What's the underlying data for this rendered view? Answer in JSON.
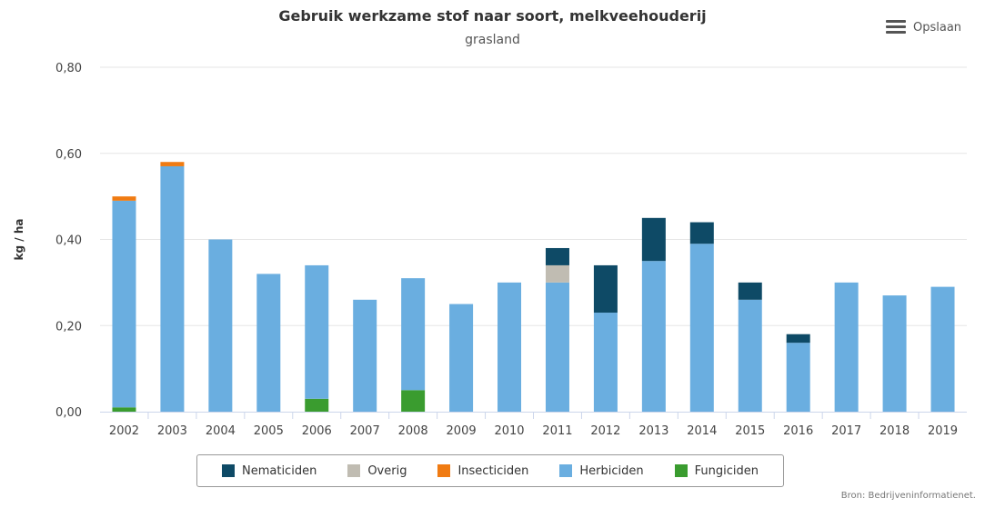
{
  "header": {
    "title": "Gebruik werkzame stof naar soort, melkveehouderij",
    "subtitle": "grasland"
  },
  "menu": {
    "label": "Opslaan",
    "icon": "hamburger-menu-icon"
  },
  "credits": "Bron: Bedrijveninformatienet.",
  "chart_data": {
    "type": "bar",
    "stacked": true,
    "title": "Gebruik werkzame stof naar soort, melkveehouderij",
    "subtitle": "grasland",
    "xlabel": "",
    "ylabel": "kg / ha",
    "ylim": [
      0,
      0.8
    ],
    "yticks": [
      "0,00",
      "0,20",
      "0,40",
      "0,60",
      "0,80"
    ],
    "grid": true,
    "legend_position": "bottom",
    "categories": [
      "2002",
      "2003",
      "2004",
      "2005",
      "2006",
      "2007",
      "2008",
      "2009",
      "2010",
      "2011",
      "2012",
      "2013",
      "2014",
      "2015",
      "2016",
      "2017",
      "2018",
      "2019"
    ],
    "series": [
      {
        "name": "Fungiciden",
        "color": "#3a9c2f",
        "values": [
          0.01,
          0,
          0,
          0,
          0.03,
          0,
          0.05,
          0,
          0,
          0,
          0,
          0,
          0,
          0,
          0,
          0,
          0,
          0
        ]
      },
      {
        "name": "Herbiciden",
        "color": "#6aaee0",
        "values": [
          0.48,
          0.57,
          0.4,
          0.32,
          0.31,
          0.26,
          0.26,
          0.25,
          0.3,
          0.3,
          0.23,
          0.35,
          0.39,
          0.26,
          0.16,
          0.3,
          0.27,
          0.29
        ]
      },
      {
        "name": "Insecticiden",
        "color": "#f07b12",
        "values": [
          0.01,
          0.01,
          0,
          0,
          0,
          0,
          0,
          0,
          0,
          0,
          0,
          0,
          0,
          0,
          0,
          0,
          0,
          0
        ]
      },
      {
        "name": "Overig",
        "color": "#c0bcb2",
        "values": [
          0,
          0,
          0,
          0,
          0,
          0,
          0,
          0,
          0,
          0.04,
          0,
          0,
          0,
          0,
          0,
          0,
          0,
          0
        ]
      },
      {
        "name": "Nematiciden",
        "color": "#0e4a66",
        "values": [
          0,
          0,
          0,
          0,
          0,
          0,
          0,
          0,
          0,
          0.04,
          0.11,
          0.1,
          0.05,
          0.04,
          0.02,
          0,
          0,
          0
        ]
      }
    ],
    "legend_order": [
      "Nematiciden",
      "Overig",
      "Insecticiden",
      "Herbiciden",
      "Fungiciden"
    ]
  }
}
